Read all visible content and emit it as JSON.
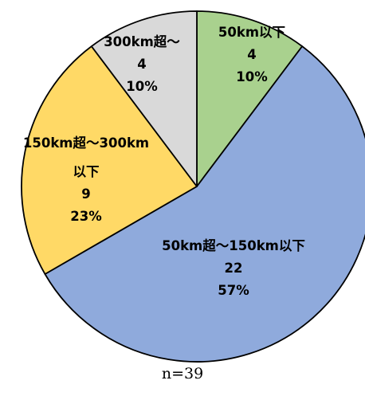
{
  "chart_data": {
    "type": "pie",
    "slices": [
      {
        "label_lines": [
          "50km以下"
        ],
        "value": 4,
        "percent": "10%",
        "color": "#a9d18e"
      },
      {
        "label_lines": [
          "50km超～150km以下"
        ],
        "value": 22,
        "percent": "57%",
        "color": "#8faadc"
      },
      {
        "label_lines": [
          "150km超～300km",
          "以下"
        ],
        "value": 9,
        "percent": "23%",
        "color": "#ffd966"
      },
      {
        "label_lines": [
          "300km超～"
        ],
        "value": 4,
        "percent": "10%",
        "color": "#d9d9d9"
      }
    ],
    "total_label": "n=39"
  }
}
